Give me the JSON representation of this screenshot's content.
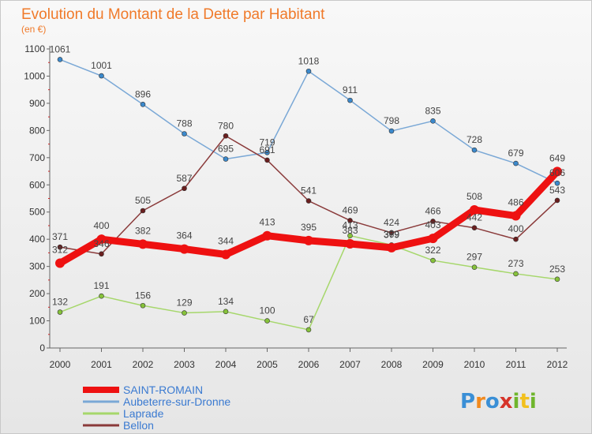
{
  "header": {
    "title": "Evolution du Montant de la Dette par Habitant",
    "subtitle": "(en €)"
  },
  "logo": {
    "text": "Proxiti",
    "colors": [
      "#3a8fd6",
      "#f28a1e",
      "#3a8fd6",
      "#d6342a",
      "#6fb52c",
      "#f2c01e",
      "#6fb52c"
    ]
  },
  "chart_data": {
    "type": "line",
    "title": "Evolution du Montant de la Dette par Habitant",
    "subtitle": "(en €)",
    "xlabel": "",
    "ylabel": "",
    "ylim": [
      0,
      1100
    ],
    "yticks": [
      0,
      100,
      200,
      300,
      400,
      500,
      600,
      700,
      800,
      900,
      1000,
      1100
    ],
    "categories": [
      "2000",
      "2001",
      "2002",
      "2003",
      "2004",
      "2005",
      "2006",
      "2007",
      "2008",
      "2009",
      "2010",
      "2011",
      "2012"
    ],
    "grid": false,
    "legend_position": "bottom-left",
    "series": [
      {
        "name": "Aubeterre-sur-Dronne",
        "color": "#7aa8d6",
        "marker": "#3b89cc",
        "values": [
          1061,
          1001,
          896,
          788,
          695,
          719,
          1018,
          911,
          798,
          835,
          728,
          679,
          606
        ],
        "labels": [
          "1061",
          "1001",
          "896",
          "788",
          "695",
          "719",
          "1018",
          "911",
          "798",
          "835",
          "728",
          "679",
          "606"
        ]
      },
      {
        "name": "Laprade",
        "color": "#a6d76b",
        "marker": "#86c23a",
        "values": [
          132,
          191,
          156,
          129,
          134,
          100,
          67,
          413,
          379,
          322,
          297,
          273,
          253
        ],
        "labels": [
          "132",
          "191",
          "156",
          "129",
          "134",
          "100",
          "67",
          "413",
          "379",
          "322",
          "297",
          "273",
          "253"
        ]
      },
      {
        "name": "Bellon",
        "color": "#8a3a3a",
        "marker": "#6a1e1e",
        "values": [
          371,
          346,
          505,
          587,
          780,
          691,
          541,
          469,
          424,
          466,
          442,
          400,
          543
        ],
        "labels": [
          "371",
          "346",
          "505",
          "587",
          "780",
          "691",
          "541",
          "469",
          "424",
          "466",
          "442",
          "400",
          "543"
        ]
      },
      {
        "name": "SAINT-ROMAIN",
        "color": "#ee1111",
        "marker": "#ee1111",
        "highlight": true,
        "values": [
          312,
          400,
          382,
          364,
          344,
          413,
          395,
          383,
          369,
          403,
          508,
          486,
          649
        ],
        "labels": [
          "312",
          "400",
          "382",
          "364",
          "344",
          "413",
          "395",
          "383",
          "369",
          "403",
          "508",
          "486",
          "649"
        ]
      }
    ],
    "legend_order": [
      "SAINT-ROMAIN",
      "Aubeterre-sur-Dronne",
      "Laprade",
      "Bellon"
    ]
  }
}
